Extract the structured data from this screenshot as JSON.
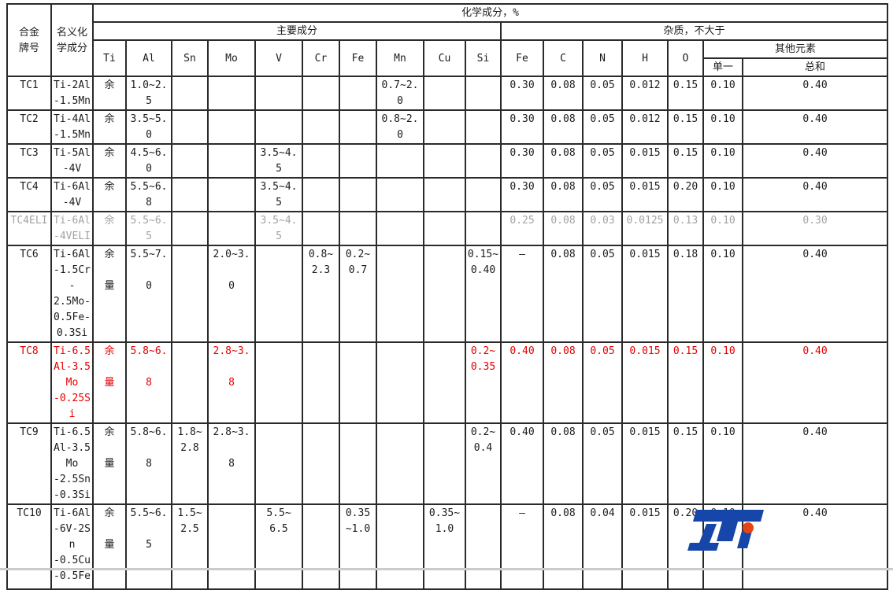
{
  "colors": {
    "bg": "#ffffff",
    "grid": "#2a2a2a",
    "text": "#1c1c1c",
    "red": "#e60000",
    "gray": "#a3a3a3",
    "logo_blue": "#1646a9",
    "logo_red": "#e64415",
    "window_edge": "#c8cccf"
  },
  "table": {
    "header": {
      "col_grade": "合金\n牌号",
      "col_nominal": "名义化\n学成分",
      "group_chem": "化学成分，%",
      "group_main": "主要成分",
      "group_impurity": "杂质，不大于",
      "group_other": "其他元素",
      "main_elements": [
        "Ti",
        "Al",
        "Sn",
        "Mo",
        "V",
        "Cr",
        "Fe",
        "Mn",
        "Cu",
        "Si"
      ],
      "impurity_elements": [
        "Fe",
        "C",
        "N",
        "H",
        "O"
      ],
      "other_single": "单一",
      "other_total": "总和"
    },
    "rows": [
      {
        "style": "normal",
        "cells": [
          "TC1",
          "Ti-2Al\n-1.5Mn",
          "余",
          "1.0~2.\n5",
          "",
          "",
          "",
          "",
          "",
          "0.7~2.\n0",
          "",
          "",
          "0.30",
          "0.08",
          "0.05",
          "0.012",
          "0.15",
          "0.10",
          "0.40"
        ]
      },
      {
        "style": "normal",
        "cells": [
          "TC2",
          "Ti-4Al\n-1.5Mn",
          "余",
          "3.5~5.\n0",
          "",
          "",
          "",
          "",
          "",
          "0.8~2.\n0",
          "",
          "",
          "0.30",
          "0.08",
          "0.05",
          "0.012",
          "0.15",
          "0.10",
          "0.40"
        ]
      },
      {
        "style": "normal",
        "cells": [
          "TC3",
          "Ti-5Al\n-4V",
          "余",
          "4.5~6.\n0",
          "",
          "",
          "3.5~4.\n5",
          "",
          "",
          "",
          "",
          "",
          "0.30",
          "0.08",
          "0.05",
          "0.015",
          "0.15",
          "0.10",
          "0.40"
        ]
      },
      {
        "style": "normal",
        "cells": [
          "TC4",
          "Ti-6Al\n-4V",
          "余",
          "5.5~6.\n8",
          "",
          "",
          "3.5~4.\n5",
          "",
          "",
          "",
          "",
          "",
          "0.30",
          "0.08",
          "0.05",
          "0.015",
          "0.20",
          "0.10",
          "0.40"
        ]
      },
      {
        "style": "gray",
        "cells": [
          "TC4ELI",
          "Ti-6Al\n-4VELI",
          "余",
          "5.5~6.\n5",
          "",
          "",
          "3.5~4.\n5",
          "",
          "",
          "",
          "",
          "",
          "0.25",
          "0.08",
          "0.03",
          "0.0125",
          "0.13",
          "0.10",
          "0.30"
        ]
      },
      {
        "style": "normal",
        "cells": [
          "TC6",
          "Ti-6Al\n-1.5Cr\n-\n2.5Mo-\n0.5Fe-\n0.3Si",
          "余\n\n量",
          "5.5~7.\n\n0",
          "",
          "2.0~3.\n\n0",
          "",
          "0.8~\n2.3",
          "0.2~\n0.7",
          "",
          "",
          "0.15~\n0.40",
          "–",
          "0.08",
          "0.05",
          "0.015",
          "0.18",
          "0.10",
          "0.40"
        ]
      },
      {
        "style": "red",
        "cells": [
          "TC8",
          "Ti-6.5\nAl-3.5\nMo\n-0.25S\ni",
          "余\n\n量",
          "5.8~6.\n\n8",
          "",
          "2.8~3.\n\n8",
          "",
          "",
          "",
          "",
          "",
          "0.2~\n0.35",
          "0.40",
          "0.08",
          "0.05",
          "0.015",
          "0.15",
          "0.10",
          "0.40"
        ]
      },
      {
        "style": "normal",
        "cells": [
          "TC9",
          "Ti-6.5\nAl-3.5\nMo\n-2.5Sn\n-0.3Si",
          "余\n\n量",
          "5.8~6.\n\n8",
          "1.8~\n2.8",
          "2.8~3.\n\n8",
          "",
          "",
          "",
          "",
          "",
          "0.2~\n0.4",
          "0.40",
          "0.08",
          "0.05",
          "0.015",
          "0.15",
          "0.10",
          "0.40"
        ]
      },
      {
        "style": "normal",
        "cells": [
          "TC10",
          "Ti-6Al\n-6V-2S\nn\n-0.5Cu\n-0.5Fe",
          "余\n\n量",
          "5.5~6.\n\n5",
          "1.5~\n2.5",
          "",
          "5.5~\n6.5",
          "",
          "0.35\n~1.0",
          "",
          "0.35~\n1.0",
          "",
          "–",
          "0.08",
          "0.04",
          "0.015",
          "0.20",
          "0.10",
          "0.40"
        ]
      }
    ]
  },
  "logo": {
    "text": "LTi"
  }
}
